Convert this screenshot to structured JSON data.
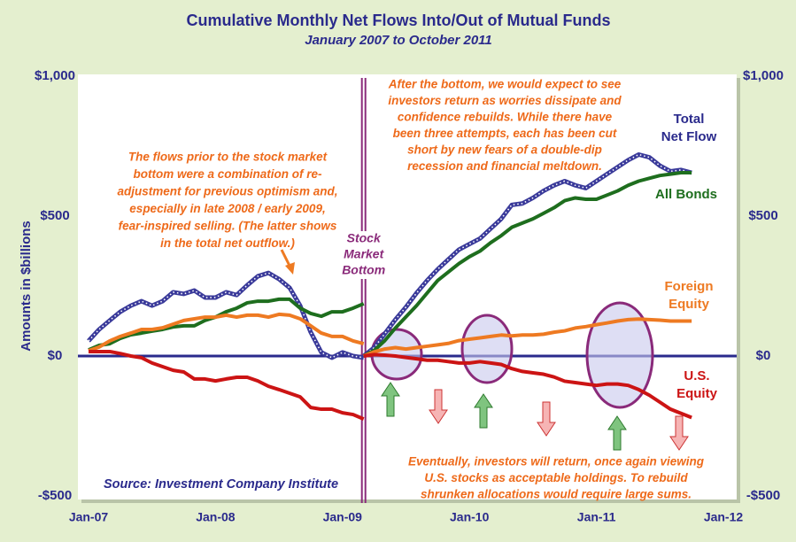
{
  "chart_data": {
    "type": "line",
    "title": "Cumulative Monthly Net Flows Into/Out of Mutual Funds",
    "subtitle": "January 2007 to October 2011",
    "y_label": "Amounts in $billions",
    "source": "Source: Investment Company Institute",
    "annotations": [
      [
        "The flows prior to the stock market",
        "bottom were a combination of re-",
        "adjustment for previous optimism and,",
        "especially in late 2008 / early 2009,",
        "fear-inspired selling. (The latter shows",
        "in the total net outflow.)"
      ],
      [
        "After the bottom, we would expect to see",
        "investors return as worries dissipate and",
        "confidence rebuilds. While there have",
        "been three attempts, each has been cut",
        "short by new fears of a double-dip",
        "recession and financial meltdown."
      ],
      [
        "Eventually, investors will return, once again viewing",
        "U.S. stocks as acceptable holdings. To rebuild",
        "shrunken allocations would require large sums."
      ],
      [
        "Stock",
        "Market",
        "Bottom"
      ]
    ],
    "categories": [
      "Jan-07",
      null,
      null,
      null,
      null,
      null,
      null,
      null,
      null,
      null,
      null,
      null,
      "Jan-08",
      null,
      null,
      null,
      null,
      null,
      null,
      null,
      null,
      null,
      null,
      null,
      "Jan-09",
      null,
      null,
      null,
      null,
      null,
      null,
      null,
      null,
      null,
      null,
      null,
      "Jan-10",
      null,
      null,
      null,
      null,
      null,
      null,
      null,
      null,
      null,
      null,
      null,
      "Jan-11",
      null,
      null,
      null,
      null,
      null,
      null,
      null,
      null,
      null,
      null,
      null,
      "Jan-12"
    ],
    "ylim": [
      -500,
      1000
    ],
    "yticks": [
      {
        "value": -500,
        "label": "-$500"
      },
      {
        "value": 0,
        "label": "$0"
      },
      {
        "value": 500,
        "label": "$500"
      },
      {
        "value": 1000,
        "label": "$1,000"
      }
    ],
    "series": [
      {
        "color": "#3a3a9a",
        "pattern": "dotted",
        "values": [
          54,
          95,
          127,
          158,
          180,
          196,
          180,
          196,
          228,
          222,
          234,
          209,
          209,
          228,
          218,
          253,
          285,
          297,
          275,
          244,
          180,
          85,
          13,
          -6,
          13,
          0,
          -6,
          null,
          null,
          null,
          null,
          null,
          null,
          null,
          null,
          null,
          null,
          null,
          null,
          null,
          null,
          null,
          null,
          null,
          null,
          null,
          null,
          null,
          null,
          null,
          null,
          null,
          null,
          null,
          null,
          null,
          null,
          null,
          null,
          null,
          null
        ]
      },
      {
        "name": "Total Net Flow",
        "color": "#3a3a9a",
        "pattern": "dotted",
        "values": [
          null,
          null,
          null,
          null,
          null,
          null,
          null,
          null,
          null,
          null,
          null,
          null,
          null,
          null,
          null,
          null,
          null,
          null,
          null,
          null,
          null,
          null,
          null,
          null,
          null,
          null,
          0,
          30,
          80,
          130,
          175,
          225,
          270,
          310,
          345,
          380,
          400,
          420,
          455,
          490,
          540,
          545,
          565,
          590,
          610,
          625,
          610,
          600,
          625,
          650,
          675,
          700,
          720,
          710,
          680,
          660,
          665,
          655,
          null,
          null,
          null
        ]
      },
      {
        "color": "#1e6e1e",
        "values": [
          22,
          38,
          44,
          63,
          76,
          82,
          89,
          95,
          104,
          108,
          108,
          127,
          139,
          158,
          171,
          190,
          196,
          196,
          203,
          203,
          171,
          152,
          142,
          158,
          158,
          171,
          187,
          null,
          null,
          null,
          null,
          null,
          null,
          null,
          null,
          null,
          null,
          null,
          null,
          null,
          null,
          null,
          null,
          null,
          null,
          null,
          null,
          null,
          null,
          null,
          null,
          null,
          null,
          null,
          null,
          null,
          null,
          null,
          null,
          null,
          null
        ]
      },
      {
        "name": "All Bonds",
        "color": "#1e6e1e",
        "values": [
          null,
          null,
          null,
          null,
          null,
          null,
          null,
          null,
          null,
          null,
          null,
          null,
          null,
          null,
          null,
          null,
          null,
          null,
          null,
          null,
          null,
          null,
          null,
          null,
          null,
          null,
          0,
          20,
          55,
          100,
          140,
          180,
          225,
          270,
          300,
          330,
          355,
          375,
          405,
          430,
          460,
          475,
          490,
          510,
          530,
          555,
          565,
          560,
          560,
          575,
          590,
          610,
          625,
          635,
          645,
          650,
          655,
          655,
          null,
          null,
          null
        ]
      },
      {
        "color": "#ee7a22",
        "values": [
          19,
          32,
          54,
          70,
          82,
          95,
          95,
          101,
          114,
          127,
          133,
          139,
          139,
          146,
          139,
          146,
          146,
          139,
          149,
          146,
          133,
          108,
          82,
          70,
          70,
          54,
          44,
          null,
          null,
          null,
          null,
          null,
          null,
          null,
          null,
          null,
          null,
          null,
          null,
          null,
          null,
          null,
          null,
          null,
          null,
          null,
          null,
          null,
          null,
          null,
          null,
          null,
          null,
          null,
          null,
          null,
          null,
          null,
          null,
          null,
          null
        ]
      },
      {
        "name": "Foreign Equity",
        "color": "#ee7a22",
        "values": [
          null,
          null,
          null,
          null,
          null,
          null,
          null,
          null,
          null,
          null,
          null,
          null,
          null,
          null,
          null,
          null,
          null,
          null,
          null,
          null,
          null,
          null,
          null,
          null,
          null,
          null,
          0,
          15,
          25,
          30,
          25,
          30,
          35,
          40,
          45,
          55,
          60,
          65,
          70,
          75,
          72,
          75,
          75,
          78,
          85,
          90,
          100,
          105,
          112,
          118,
          125,
          130,
          132,
          130,
          128,
          125,
          125,
          125,
          null,
          null,
          null
        ]
      },
      {
        "color": "#cc1414",
        "values": [
          16,
          16,
          16,
          9,
          0,
          -6,
          -25,
          -38,
          -51,
          -57,
          -82,
          -82,
          -89,
          -82,
          -76,
          -76,
          -89,
          -108,
          -120,
          -133,
          -146,
          -184,
          -190,
          -190,
          -203,
          -209,
          -225,
          null,
          null,
          null,
          null,
          null,
          null,
          null,
          null,
          null,
          null,
          null,
          null,
          null,
          null,
          null,
          null,
          null,
          null,
          null,
          null,
          null,
          null,
          null,
          null,
          null,
          null,
          null,
          null,
          null,
          null,
          null,
          null,
          null,
          null
        ]
      },
      {
        "name": "U.S. Equity",
        "color": "#cc1414",
        "values": [
          null,
          null,
          null,
          null,
          null,
          null,
          null,
          null,
          null,
          null,
          null,
          null,
          null,
          null,
          null,
          null,
          null,
          null,
          null,
          null,
          null,
          null,
          null,
          null,
          null,
          null,
          0,
          5,
          3,
          0,
          -5,
          -10,
          -15,
          -15,
          -20,
          -25,
          -25,
          -20,
          -25,
          -30,
          -45,
          -55,
          -60,
          -65,
          -75,
          -90,
          -95,
          -100,
          -105,
          -100,
          -100,
          -105,
          -120,
          -140,
          -165,
          -190,
          -205,
          -220,
          null,
          null,
          null
        ]
      }
    ]
  }
}
